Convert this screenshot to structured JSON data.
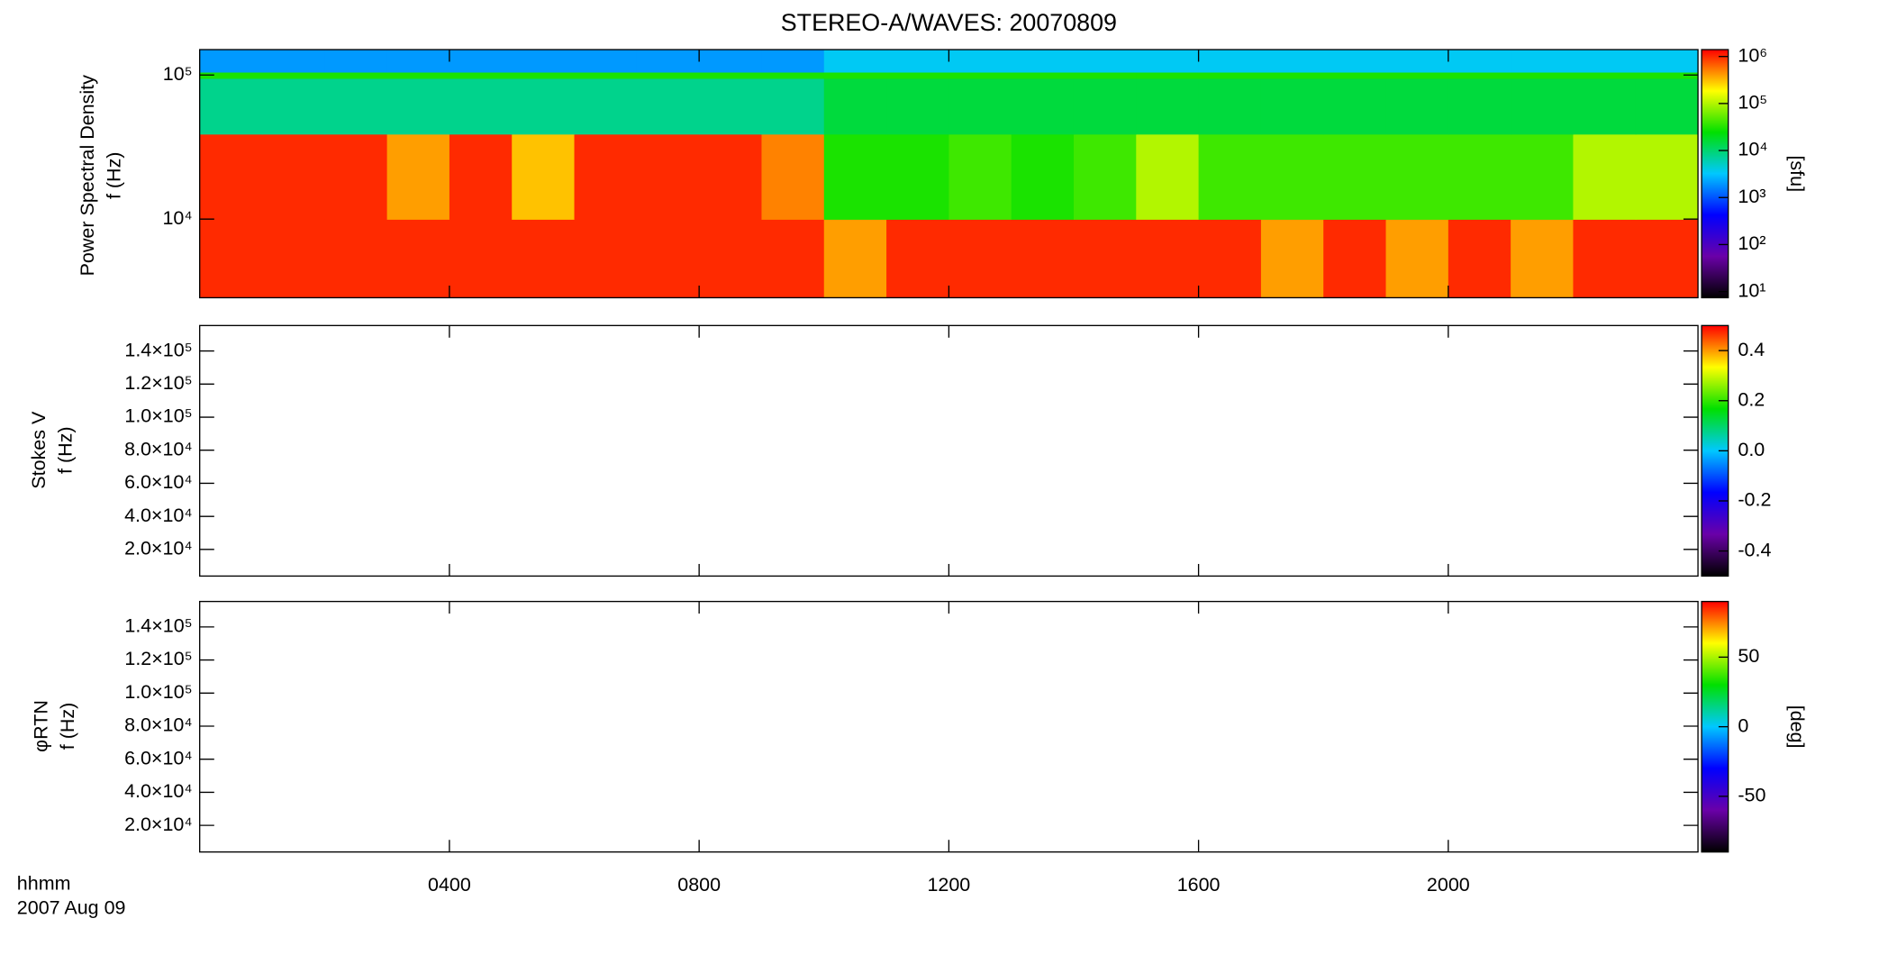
{
  "chart_data": [
    {
      "type": "heatmap",
      "title": "STEREO-A/WAVES: 20070809",
      "ylabel": [
        "Power Spectral Density",
        "f (Hz)"
      ],
      "xlim": [
        0,
        24
      ],
      "xticks": [
        4,
        8,
        12,
        16,
        20
      ],
      "ylim": [
        2850,
        150000
      ],
      "ylog": true,
      "yticks": [
        {
          "value": 10000,
          "label": "10⁴"
        },
        {
          "value": 100000,
          "label": "10⁵"
        }
      ],
      "x_bins": [
        0,
        1,
        2,
        3,
        4,
        5,
        6,
        7,
        8,
        9,
        10,
        11,
        12,
        13,
        14,
        15,
        16,
        17,
        18,
        19,
        20,
        21,
        22,
        23,
        24
      ],
      "y_bins": [
        2850,
        10000,
        39000,
        95000,
        105000,
        150000
      ],
      "z": [
        [
          1000000,
          1000000,
          1000000,
          1000000,
          1000000,
          1000000,
          1000000,
          1000000,
          1000000,
          1000000,
          400000,
          1000000,
          1000000,
          1000000,
          1000000,
          1000000,
          1000000,
          400000,
          1000000,
          400000,
          1000000,
          400000,
          1000000,
          1000000
        ],
        [
          1000000,
          1000000,
          1000000,
          400000,
          1000000,
          300000,
          1000000,
          1000000,
          1000000,
          500000,
          30000,
          30000,
          40000,
          30000,
          40000,
          100000,
          40000,
          40000,
          40000,
          40000,
          40000,
          40000,
          100000,
          100000
        ],
        [
          8000,
          8000,
          8000,
          8000,
          8000,
          8000,
          8000,
          8000,
          8000,
          8000,
          15000,
          15000,
          15000,
          15000,
          15000,
          15000,
          15000,
          15000,
          15000,
          15000,
          15000,
          15000,
          15000,
          15000
        ],
        [
          30000,
          30000,
          30000,
          30000,
          30000,
          30000,
          30000,
          30000,
          30000,
          30000,
          30000,
          30000,
          30000,
          30000,
          30000,
          30000,
          30000,
          30000,
          30000,
          30000,
          30000,
          30000,
          30000,
          30000
        ],
        [
          2000,
          2000,
          2000,
          2000,
          2000,
          2000,
          2000,
          2000,
          2000,
          2000,
          3500,
          3500,
          3500,
          3500,
          3500,
          3500,
          3500,
          3500,
          3500,
          3500,
          3500,
          3500,
          3500,
          3500
        ]
      ],
      "zlim": [
        7.4,
        1400000
      ],
      "zlog": true,
      "zticks": [
        {
          "value": 10,
          "label": "10¹"
        },
        {
          "value": 100,
          "label": "10²"
        },
        {
          "value": 1000,
          "label": "10³"
        },
        {
          "value": 10000,
          "label": "10⁴"
        },
        {
          "value": 100000,
          "label": "10⁵"
        },
        {
          "value": 1000000,
          "label": "10⁶"
        }
      ],
      "zlabel": "[sfu]",
      "colormap": [
        "#000000",
        "#6a00a8",
        "#0000ff",
        "#00c8ff",
        "#00e000",
        "#ffff00",
        "#ff0000"
      ]
    },
    {
      "type": "heatmap",
      "ylabel": [
        "Stokes V",
        "f (Hz)"
      ],
      "xlim": [
        0,
        24
      ],
      "xticks": [
        4,
        8,
        12,
        16,
        20
      ],
      "ylim": [
        3900,
        155400
      ],
      "yticks": [
        {
          "value": 20000,
          "label": "2.0×10⁴"
        },
        {
          "value": 40000,
          "label": "4.0×10⁴"
        },
        {
          "value": 60000,
          "label": "6.0×10⁴"
        },
        {
          "value": 80000,
          "label": "8.0×10⁴"
        },
        {
          "value": 100000,
          "label": "1.0×10⁵"
        },
        {
          "value": 120000,
          "label": "1.2×10⁵"
        },
        {
          "value": 140000,
          "label": "1.4×10⁵"
        }
      ],
      "zlim": [
        -0.5,
        0.5
      ],
      "zticks": [
        -0.4,
        -0.2,
        {
          "value": 0,
          "label": "0.0"
        },
        0.2,
        0.4
      ],
      "colormap": [
        "#000000",
        "#6a00a8",
        "#0000ff",
        "#00c8ff",
        "#00e000",
        "#ffff00",
        "#ff0000"
      ]
    },
    {
      "type": "heatmap",
      "ylabel": [
        "φRTN",
        "f (Hz)"
      ],
      "xlim": [
        0,
        24
      ],
      "xticks": [
        {
          "value": 4,
          "label": "0400"
        },
        {
          "value": 8,
          "label": "0800"
        },
        {
          "value": 12,
          "label": "1200"
        },
        {
          "value": 16,
          "label": "1600"
        },
        {
          "value": 20,
          "label": "2000"
        }
      ],
      "xlabel": "hhmm",
      "date": "2007 Aug 09",
      "ylim": [
        3900,
        155400
      ],
      "yticks": [
        {
          "value": 20000,
          "label": "2.0×10⁴"
        },
        {
          "value": 40000,
          "label": "4.0×10⁴"
        },
        {
          "value": 60000,
          "label": "6.0×10⁴"
        },
        {
          "value": 80000,
          "label": "8.0×10⁴"
        },
        {
          "value": 100000,
          "label": "1.0×10⁵"
        },
        {
          "value": 120000,
          "label": "1.2×10⁵"
        },
        {
          "value": 140000,
          "label": "1.4×10⁵"
        }
      ],
      "zlim": [
        -90,
        90
      ],
      "zticks": [
        -50,
        0,
        50
      ],
      "zlabel": "[deg]",
      "colormap": [
        "#000000",
        "#6a00a8",
        "#0000ff",
        "#00c8ff",
        "#00e000",
        "#ffff00",
        "#ff0000"
      ]
    }
  ]
}
